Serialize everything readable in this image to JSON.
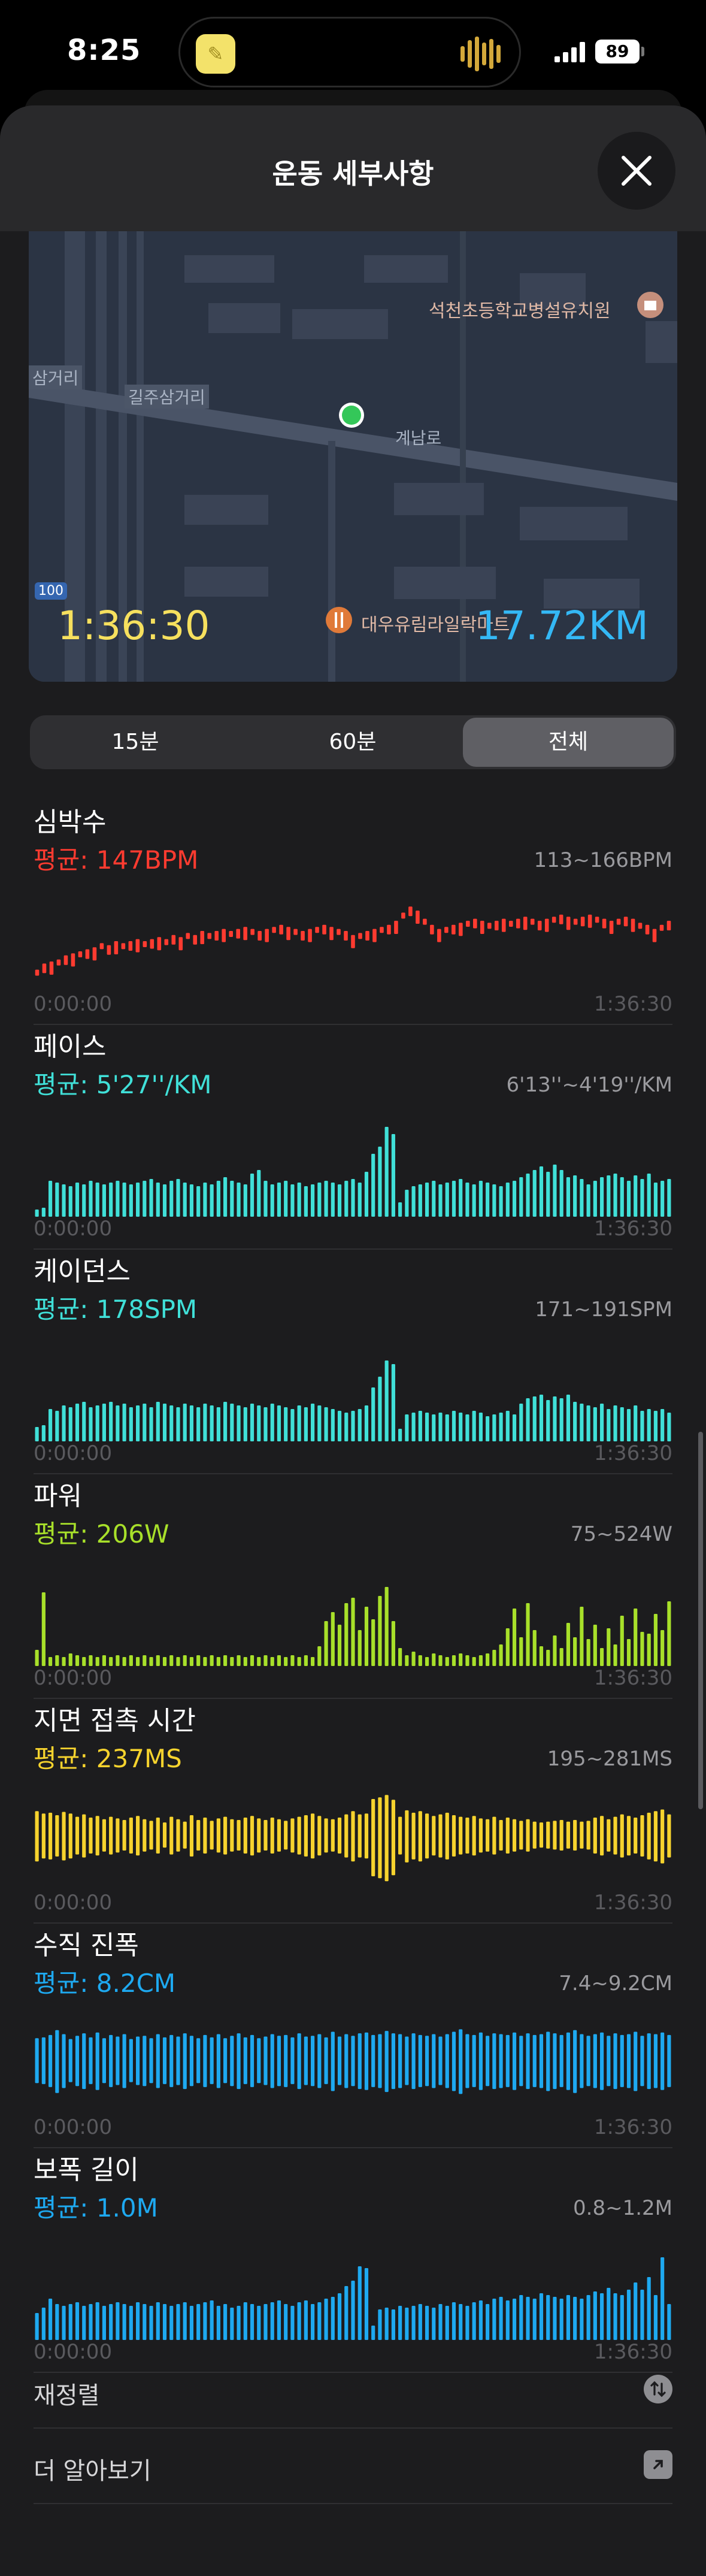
{
  "status": {
    "time": "8:25",
    "battery": "89"
  },
  "header": {
    "title": "운동 세부사항"
  },
  "map": {
    "labels": {
      "school": "석천초등학교병설유치원",
      "mart": "대우유림라일락마트",
      "street1": "삼거리",
      "street2": "길주삼거리",
      "road": "계남로",
      "sign": "100"
    },
    "duration": "1:36:30",
    "distance": "17.72KM"
  },
  "segments": [
    {
      "label": "15분",
      "active": false
    },
    {
      "label": "60분",
      "active": false
    },
    {
      "label": "전체",
      "active": true
    }
  ],
  "axis": {
    "start": "0:00:00",
    "end": "1:36:30"
  },
  "metrics": [
    {
      "title": "심박수",
      "avg": "평균: 147BPM",
      "range": "113~166BPM",
      "color": "#ff3b30",
      "style": "dots",
      "values": [
        0.22,
        0.28,
        0.3,
        0.32,
        0.36,
        0.38,
        0.4,
        0.42,
        0.44,
        0.48,
        0.46,
        0.5,
        0.48,
        0.5,
        0.52,
        0.5,
        0.52,
        0.54,
        0.52,
        0.56,
        0.54,
        0.58,
        0.56,
        0.6,
        0.58,
        0.6,
        0.62,
        0.6,
        0.62,
        0.64,
        0.62,
        0.6,
        0.62,
        0.64,
        0.66,
        0.64,
        0.62,
        0.6,
        0.62,
        0.64,
        0.66,
        0.64,
        0.62,
        0.6,
        0.56,
        0.58,
        0.6,
        0.62,
        0.64,
        0.66,
        0.7,
        0.78,
        0.84,
        0.8,
        0.72,
        0.66,
        0.62,
        0.64,
        0.66,
        0.68,
        0.7,
        0.72,
        0.7,
        0.68,
        0.7,
        0.72,
        0.7,
        0.72,
        0.74,
        0.72,
        0.7,
        0.72,
        0.74,
        0.76,
        0.74,
        0.72,
        0.74,
        0.76,
        0.74,
        0.72,
        0.7,
        0.72,
        0.74,
        0.72,
        0.68,
        0.66,
        0.62,
        0.66,
        0.7
      ]
    },
    {
      "title": "페이스",
      "avg": "평균: 5'27''/KM",
      "range": "6'13''~4'19''/KM",
      "color": "#40e0d8",
      "style": "bars",
      "values": [
        0.08,
        0.1,
        0.4,
        0.38,
        0.36,
        0.34,
        0.38,
        0.36,
        0.4,
        0.38,
        0.36,
        0.38,
        0.4,
        0.38,
        0.36,
        0.38,
        0.4,
        0.42,
        0.38,
        0.36,
        0.4,
        0.42,
        0.38,
        0.36,
        0.34,
        0.38,
        0.36,
        0.4,
        0.44,
        0.4,
        0.38,
        0.36,
        0.48,
        0.52,
        0.4,
        0.36,
        0.38,
        0.4,
        0.36,
        0.38,
        0.34,
        0.36,
        0.38,
        0.4,
        0.38,
        0.36,
        0.4,
        0.42,
        0.38,
        0.5,
        0.7,
        0.78,
        1.0,
        0.92,
        0.16,
        0.3,
        0.34,
        0.36,
        0.38,
        0.4,
        0.36,
        0.38,
        0.4,
        0.42,
        0.38,
        0.36,
        0.4,
        0.38,
        0.36,
        0.34,
        0.38,
        0.4,
        0.44,
        0.48,
        0.52,
        0.56,
        0.5,
        0.58,
        0.52,
        0.44,
        0.46,
        0.42,
        0.36,
        0.4,
        0.44,
        0.46,
        0.48,
        0.44,
        0.4,
        0.46,
        0.42,
        0.48,
        0.38,
        0.4,
        0.42
      ]
    },
    {
      "title": "케이던스",
      "avg": "평균: 178SPM",
      "range": "171~191SPM",
      "color": "#40e0d8",
      "style": "bars",
      "values": [
        0.16,
        0.18,
        0.36,
        0.34,
        0.4,
        0.38,
        0.42,
        0.44,
        0.38,
        0.4,
        0.42,
        0.44,
        0.4,
        0.42,
        0.38,
        0.4,
        0.42,
        0.38,
        0.44,
        0.42,
        0.4,
        0.38,
        0.42,
        0.4,
        0.38,
        0.42,
        0.4,
        0.38,
        0.44,
        0.42,
        0.4,
        0.38,
        0.42,
        0.4,
        0.38,
        0.42,
        0.4,
        0.38,
        0.36,
        0.4,
        0.38,
        0.42,
        0.4,
        0.38,
        0.36,
        0.34,
        0.32,
        0.34,
        0.36,
        0.4,
        0.6,
        0.72,
        0.9,
        0.86,
        0.14,
        0.3,
        0.32,
        0.34,
        0.32,
        0.3,
        0.32,
        0.3,
        0.34,
        0.32,
        0.3,
        0.34,
        0.32,
        0.28,
        0.3,
        0.32,
        0.34,
        0.3,
        0.42,
        0.48,
        0.5,
        0.52,
        0.46,
        0.5,
        0.48,
        0.52,
        0.44,
        0.42,
        0.4,
        0.38,
        0.42,
        0.36,
        0.4,
        0.38,
        0.36,
        0.4,
        0.34,
        0.36,
        0.34,
        0.36,
        0.32
      ]
    },
    {
      "title": "파워",
      "avg": "평균: 206W",
      "range": "75~524W",
      "color": "#a8e02a",
      "style": "bars",
      "values": [
        0.18,
        0.82,
        0.1,
        0.12,
        0.1,
        0.14,
        0.12,
        0.1,
        0.12,
        0.1,
        0.12,
        0.1,
        0.12,
        0.1,
        0.12,
        0.1,
        0.12,
        0.1,
        0.12,
        0.1,
        0.12,
        0.1,
        0.12,
        0.1,
        0.12,
        0.1,
        0.12,
        0.1,
        0.12,
        0.1,
        0.12,
        0.1,
        0.12,
        0.1,
        0.12,
        0.1,
        0.12,
        0.1,
        0.12,
        0.1,
        0.12,
        0.1,
        0.22,
        0.5,
        0.6,
        0.46,
        0.7,
        0.76,
        0.4,
        0.66,
        0.52,
        0.78,
        0.88,
        0.5,
        0.2,
        0.12,
        0.16,
        0.12,
        0.1,
        0.14,
        0.12,
        0.1,
        0.12,
        0.14,
        0.12,
        0.1,
        0.12,
        0.14,
        0.18,
        0.24,
        0.42,
        0.64,
        0.32,
        0.7,
        0.4,
        0.22,
        0.18,
        0.34,
        0.2,
        0.48,
        0.32,
        0.66,
        0.3,
        0.46,
        0.2,
        0.42,
        0.24,
        0.56,
        0.3,
        0.64,
        0.38,
        0.36,
        0.58,
        0.4,
        0.72
      ]
    },
    {
      "title": "지면 접촉 시간",
      "avg": "평균: 237MS",
      "range": "195~281MS",
      "color": "#f6d32e",
      "style": "centered",
      "values": [
        0.56,
        0.5,
        0.52,
        0.46,
        0.54,
        0.5,
        0.42,
        0.48,
        0.4,
        0.44,
        0.36,
        0.42,
        0.38,
        0.34,
        0.4,
        0.44,
        0.36,
        0.32,
        0.4,
        0.28,
        0.42,
        0.36,
        0.3,
        0.46,
        0.34,
        0.4,
        0.32,
        0.38,
        0.42,
        0.36,
        0.34,
        0.4,
        0.44,
        0.38,
        0.34,
        0.4,
        0.36,
        0.32,
        0.38,
        0.42,
        0.46,
        0.5,
        0.44,
        0.38,
        0.36,
        0.4,
        0.48,
        0.56,
        0.48,
        0.5,
        0.86,
        0.9,
        0.96,
        0.84,
        0.42,
        0.58,
        0.52,
        0.56,
        0.5,
        0.44,
        0.48,
        0.52,
        0.46,
        0.42,
        0.4,
        0.44,
        0.38,
        0.36,
        0.42,
        0.34,
        0.4,
        0.36,
        0.32,
        0.36,
        0.3,
        0.28,
        0.3,
        0.32,
        0.34,
        0.3,
        0.34,
        0.3,
        0.32,
        0.4,
        0.44,
        0.36,
        0.42,
        0.48,
        0.44,
        0.4,
        0.46,
        0.52,
        0.56,
        0.6,
        0.48
      ]
    },
    {
      "title": "수직 진폭",
      "avg": "평균: 8.2CM",
      "range": "7.4~9.2CM",
      "color": "#1ea9f0",
      "style": "centered",
      "values": [
        0.5,
        0.52,
        0.58,
        0.7,
        0.6,
        0.48,
        0.56,
        0.62,
        0.52,
        0.64,
        0.5,
        0.58,
        0.54,
        0.6,
        0.48,
        0.54,
        0.56,
        0.5,
        0.6,
        0.52,
        0.58,
        0.54,
        0.62,
        0.56,
        0.5,
        0.58,
        0.52,
        0.6,
        0.5,
        0.56,
        0.62,
        0.52,
        0.58,
        0.5,
        0.54,
        0.6,
        0.56,
        0.58,
        0.52,
        0.62,
        0.54,
        0.56,
        0.6,
        0.52,
        0.66,
        0.54,
        0.6,
        0.56,
        0.62,
        0.64,
        0.58,
        0.6,
        0.68,
        0.62,
        0.6,
        0.54,
        0.62,
        0.58,
        0.56,
        0.6,
        0.54,
        0.6,
        0.66,
        0.72,
        0.6,
        0.58,
        0.64,
        0.56,
        0.62,
        0.6,
        0.58,
        0.64,
        0.56,
        0.62,
        0.58,
        0.6,
        0.66,
        0.62,
        0.58,
        0.64,
        0.7,
        0.6,
        0.56,
        0.6,
        0.64,
        0.56,
        0.62,
        0.58,
        0.6,
        0.66,
        0.56,
        0.62,
        0.6,
        0.64,
        0.58
      ]
    },
    {
      "title": "보폭 길이",
      "avg": "평균: 1.0M",
      "range": "0.8~1.2M",
      "color": "#1ea9f0",
      "style": "bars",
      "values": [
        0.3,
        0.36,
        0.46,
        0.4,
        0.38,
        0.4,
        0.42,
        0.38,
        0.4,
        0.42,
        0.38,
        0.4,
        0.42,
        0.4,
        0.38,
        0.42,
        0.4,
        0.38,
        0.42,
        0.4,
        0.38,
        0.4,
        0.42,
        0.38,
        0.4,
        0.42,
        0.44,
        0.38,
        0.4,
        0.36,
        0.38,
        0.42,
        0.4,
        0.38,
        0.4,
        0.42,
        0.44,
        0.4,
        0.38,
        0.42,
        0.44,
        0.4,
        0.42,
        0.46,
        0.48,
        0.52,
        0.6,
        0.66,
        0.82,
        0.8,
        0.16,
        0.34,
        0.36,
        0.34,
        0.38,
        0.36,
        0.38,
        0.4,
        0.38,
        0.36,
        0.4,
        0.38,
        0.42,
        0.4,
        0.38,
        0.42,
        0.44,
        0.4,
        0.46,
        0.48,
        0.44,
        0.46,
        0.5,
        0.48,
        0.46,
        0.52,
        0.5,
        0.48,
        0.46,
        0.5,
        0.48,
        0.46,
        0.5,
        0.54,
        0.52,
        0.58,
        0.52,
        0.5,
        0.56,
        0.64,
        0.56,
        0.7,
        0.5,
        0.92,
        0.4
      ]
    }
  ],
  "list": {
    "reorder": "재정렬",
    "learn_more": "더 알아보기"
  }
}
